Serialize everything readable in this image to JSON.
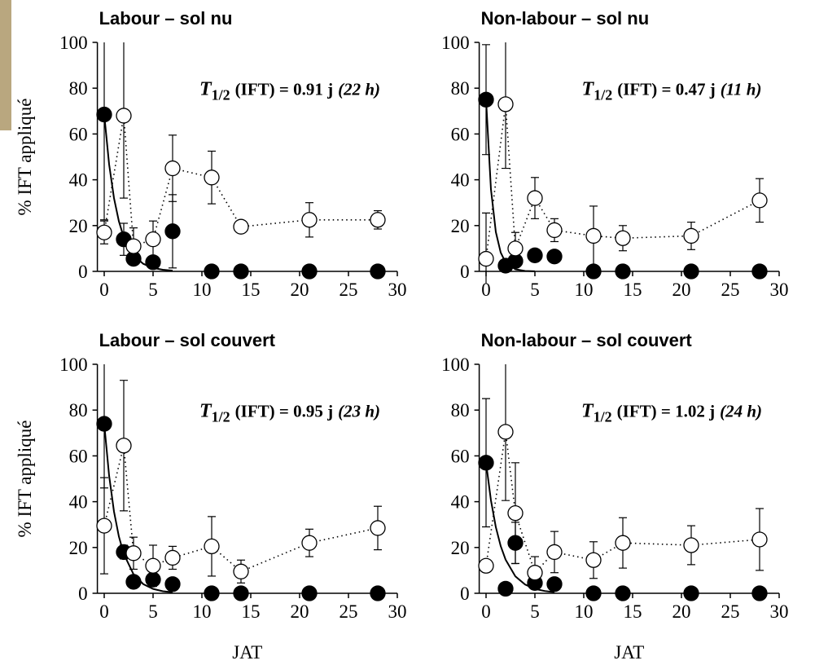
{
  "chart_data": [
    {
      "type": "scatter",
      "title": "Labour – sol nu",
      "ylabel": "% IFT appliqué",
      "xlim": [
        -0.7,
        30
      ],
      "ylim": [
        0,
        100
      ],
      "xticks": [
        0,
        5,
        10,
        15,
        20,
        25,
        30
      ],
      "yticks": [
        0,
        20,
        40,
        60,
        80,
        100
      ],
      "annotation": {
        "symbol": "T",
        "subscript": "1/2",
        "text": "(IFT) = 0.91 j",
        "note": "(22 h)"
      },
      "series": [
        {
          "marker": "filled",
          "color": "#000000",
          "x": [
            0,
            2,
            3,
            5,
            7,
            11,
            14,
            21,
            28
          ],
          "values": [
            68.5,
            14,
            5.5,
            4,
            17.5,
            0,
            0,
            0,
            0
          ],
          "errors": [
            46,
            7,
            2,
            2,
            16,
            0,
            0,
            0,
            0
          ]
        },
        {
          "marker": "open",
          "line": "dotted",
          "color": "#000000",
          "x": [
            0,
            2,
            3,
            5,
            7,
            11,
            14,
            21,
            28
          ],
          "values": [
            17,
            68,
            11,
            14,
            45,
            41,
            19.5,
            22.5,
            22.5
          ],
          "errors": [
            5,
            36,
            8,
            8,
            14.5,
            11.5,
            0,
            7.5,
            4
          ]
        },
        {
          "line": "solid",
          "color": "#000000",
          "x": [
            0,
            0.5,
            1,
            1.5,
            2,
            3,
            4,
            5,
            6,
            7
          ],
          "values": [
            68.5,
            46.8,
            32,
            21.9,
            14.9,
            7,
            3.3,
            1.5,
            0.7,
            0.3
          ]
        }
      ]
    },
    {
      "type": "scatter",
      "title": "Non-labour – sol nu",
      "xlim": [
        -0.7,
        30
      ],
      "ylim": [
        0,
        100
      ],
      "xticks": [
        0,
        5,
        10,
        15,
        20,
        25,
        30
      ],
      "yticks": [
        0,
        20,
        40,
        60,
        80,
        100
      ],
      "annotation": {
        "symbol": "T",
        "subscript": "1/2",
        "text": "(IFT) = 0.47 j",
        "note": "(11 h)"
      },
      "series": [
        {
          "marker": "filled",
          "color": "#000000",
          "x": [
            0,
            2,
            3,
            5,
            7,
            11,
            14,
            21,
            28
          ],
          "values": [
            75,
            2.5,
            4.5,
            7,
            6.5,
            0,
            0,
            0,
            0
          ],
          "errors": [
            24,
            0,
            0,
            0,
            0,
            0,
            0,
            0,
            0
          ]
        },
        {
          "marker": "open",
          "line": "dotted",
          "color": "#000000",
          "x": [
            0,
            2,
            3,
            5,
            7,
            11,
            14,
            21,
            28
          ],
          "values": [
            5.5,
            73,
            10,
            32,
            18,
            15.5,
            14.5,
            15.5,
            31
          ],
          "errors": [
            20,
            28,
            7,
            9,
            5,
            13,
            5.5,
            6,
            9.5
          ]
        },
        {
          "line": "solid",
          "color": "#000000",
          "x": [
            0,
            0.5,
            1,
            1.5,
            2,
            3,
            4,
            5
          ],
          "values": [
            75,
            35.9,
            17.2,
            8.2,
            3.9,
            0.9,
            0.2,
            0.05
          ]
        }
      ]
    },
    {
      "type": "scatter",
      "title": "Labour – sol couvert",
      "ylabel": "% IFT appliqué",
      "xlabel": "JAT",
      "xlim": [
        -0.7,
        30
      ],
      "ylim": [
        0,
        100
      ],
      "xticks": [
        0,
        5,
        10,
        15,
        20,
        25,
        30
      ],
      "yticks": [
        0,
        20,
        40,
        60,
        80,
        100
      ],
      "annotation": {
        "symbol": "T",
        "subscript": "1/2",
        "text": "(IFT) = 0.95 j",
        "note": "(23 h)"
      },
      "series": [
        {
          "marker": "filled",
          "color": "#000000",
          "x": [
            0,
            2,
            3,
            5,
            7,
            11,
            14,
            21,
            28
          ],
          "values": [
            74,
            18,
            5,
            6,
            4,
            0,
            0,
            0,
            0
          ],
          "errors": [
            28,
            3,
            0,
            2,
            0,
            0,
            0,
            0,
            0
          ]
        },
        {
          "marker": "open",
          "line": "dotted",
          "color": "#000000",
          "x": [
            0,
            2,
            3,
            5,
            7,
            11,
            14,
            21,
            28
          ],
          "values": [
            29.5,
            64.5,
            17.5,
            12,
            15.5,
            20.5,
            9.5,
            22,
            28.5
          ],
          "errors": [
            21,
            28.5,
            7,
            9,
            5,
            13,
            5,
            6,
            9.5
          ]
        },
        {
          "line": "solid",
          "color": "#000000",
          "x": [
            0,
            0.5,
            1,
            1.5,
            2,
            3,
            4,
            5,
            6,
            7
          ],
          "values": [
            74,
            51.4,
            35.7,
            24.8,
            17.2,
            8.3,
            4,
            1.9,
            0.9,
            0.45
          ]
        }
      ]
    },
    {
      "type": "scatter",
      "title": "Non-labour – sol couvert",
      "xlabel": "JAT",
      "xlim": [
        -0.7,
        30
      ],
      "ylim": [
        0,
        100
      ],
      "xticks": [
        0,
        5,
        10,
        15,
        20,
        25,
        30
      ],
      "yticks": [
        0,
        20,
        40,
        60,
        80,
        100
      ],
      "annotation": {
        "symbol": "T",
        "subscript": "1/2",
        "text": "(IFT) = 1.02 j",
        "note": "(24 h)"
      },
      "series": [
        {
          "marker": "filled",
          "color": "#000000",
          "x": [
            0,
            2,
            3,
            5,
            7,
            11,
            14,
            21,
            28
          ],
          "values": [
            57,
            2,
            22,
            4.5,
            4,
            0,
            0,
            0,
            0
          ],
          "errors": [
            28,
            0,
            9,
            0,
            0,
            0,
            0,
            0,
            0
          ]
        },
        {
          "marker": "open",
          "line": "dotted",
          "color": "#000000",
          "x": [
            0,
            2,
            3,
            5,
            7,
            11,
            14,
            21,
            28
          ],
          "values": [
            12,
            70.5,
            35,
            9,
            18,
            14.5,
            22,
            21,
            23.5
          ],
          "errors": [
            0,
            30,
            22,
            7,
            9,
            8,
            11,
            8.5,
            13.5
          ]
        },
        {
          "line": "solid",
          "color": "#000000",
          "x": [
            0,
            0.5,
            1,
            1.5,
            2,
            3,
            4,
            5,
            6,
            7
          ],
          "values": [
            57,
            40.6,
            28.9,
            20.6,
            14.7,
            7.4,
            3.8,
            1.9,
            1,
            0.5
          ]
        }
      ]
    }
  ]
}
